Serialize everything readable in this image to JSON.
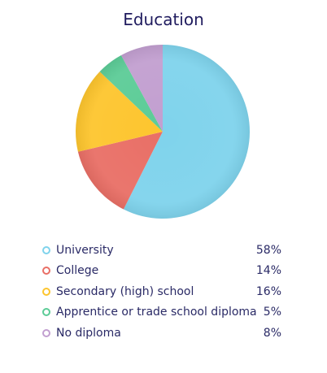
{
  "chart_data": {
    "type": "pie",
    "title": "Education",
    "categories": [
      "University",
      "College",
      "Secondary (high) school",
      "Apprentice or trade school diploma",
      "No diploma"
    ],
    "values": [
      58,
      14,
      16,
      5,
      8
    ],
    "labels": [
      "58%",
      "14%",
      "16%",
      "5%",
      "8%"
    ],
    "colors": [
      "#7fd3ec",
      "#e96f66",
      "#fdc52e",
      "#5ccc97",
      "#c29fd0"
    ],
    "legend": "bottom"
  }
}
